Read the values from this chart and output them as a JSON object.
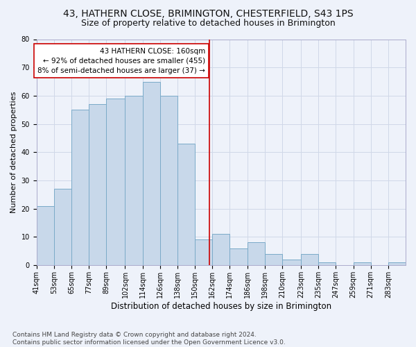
{
  "title": "43, HATHERN CLOSE, BRIMINGTON, CHESTERFIELD, S43 1PS",
  "subtitle": "Size of property relative to detached houses in Brimington",
  "xlabel": "Distribution of detached houses by size in Brimington",
  "ylabel": "Number of detached properties",
  "bar_color": "#c8d8ea",
  "bar_edge_color": "#7aaac8",
  "background_color": "#eef2fa",
  "grid_color": "#d0d8e8",
  "annotation_text": "43 HATHERN CLOSE: 160sqm\n← 92% of detached houses are smaller (455)\n8% of semi-detached houses are larger (37) →",
  "vline_x": 160,
  "vline_color": "#cc0000",
  "categories": [
    "41sqm",
    "53sqm",
    "65sqm",
    "77sqm",
    "89sqm",
    "102sqm",
    "114sqm",
    "126sqm",
    "138sqm",
    "150sqm",
    "162sqm",
    "174sqm",
    "186sqm",
    "198sqm",
    "210sqm",
    "223sqm",
    "235sqm",
    "247sqm",
    "259sqm",
    "271sqm",
    "283sqm"
  ],
  "bin_edges": [
    41,
    53,
    65,
    77,
    89,
    102,
    114,
    126,
    138,
    150,
    162,
    174,
    186,
    198,
    210,
    223,
    235,
    247,
    259,
    271,
    283,
    295
  ],
  "values": [
    21,
    27,
    55,
    57,
    59,
    60,
    65,
    60,
    43,
    9,
    11,
    6,
    8,
    4,
    2,
    4,
    1,
    0,
    1,
    0,
    1
  ],
  "ylim": [
    0,
    80
  ],
  "yticks": [
    0,
    10,
    20,
    30,
    40,
    50,
    60,
    70,
    80
  ],
  "footnote": "Contains HM Land Registry data © Crown copyright and database right 2024.\nContains public sector information licensed under the Open Government Licence v3.0.",
  "title_fontsize": 10,
  "subtitle_fontsize": 9,
  "xlabel_fontsize": 8.5,
  "ylabel_fontsize": 8,
  "tick_fontsize": 7,
  "footnote_fontsize": 6.5,
  "annot_fontsize": 7.5
}
